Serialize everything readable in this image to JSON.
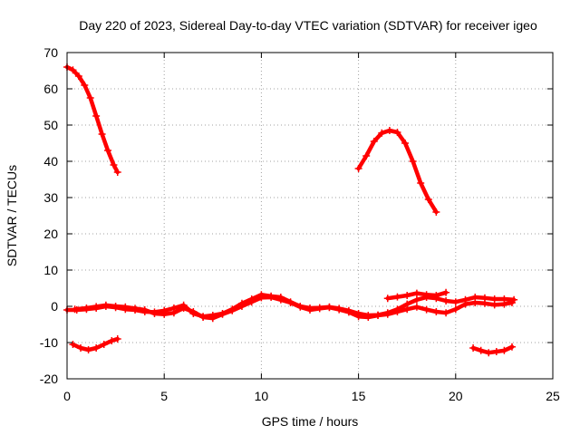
{
  "chart_data": {
    "type": "scatter",
    "title": "Day 220 of 2023, Sidereal Day-to-day VTEC variation (SDTVAR) for receiver igeo",
    "xlabel": "GPS time / hours",
    "ylabel": "SDTVAR / TECUs",
    "xlim": [
      0,
      25
    ],
    "ylim": [
      -20,
      70
    ],
    "xticks": [
      0,
      5,
      10,
      15,
      20,
      25
    ],
    "yticks": [
      -20,
      -10,
      0,
      10,
      20,
      30,
      40,
      50,
      60,
      70
    ],
    "grid": true,
    "color": "#ff0000",
    "marker": "plus",
    "series": [
      {
        "name": "arc-high-early",
        "x": [
          0.0,
          0.3,
          0.6,
          0.9,
          1.2,
          1.5,
          1.8,
          2.1,
          2.4,
          2.6
        ],
        "y": [
          66.0,
          65.2,
          63.5,
          61.0,
          57.5,
          52.5,
          47.5,
          43.0,
          39.0,
          37.0
        ]
      },
      {
        "name": "arc-high-late",
        "x": [
          15.0,
          15.4,
          15.8,
          16.2,
          16.6,
          17.0,
          17.4,
          17.8,
          18.2,
          18.6,
          19.0
        ],
        "y": [
          38.0,
          41.5,
          45.5,
          47.8,
          48.5,
          48.0,
          45.0,
          40.0,
          34.0,
          29.5,
          26.0
        ]
      },
      {
        "name": "baseline-a",
        "x": [
          0,
          0.5,
          1.0,
          1.5,
          2.0,
          2.5,
          3.0,
          3.5,
          4.0,
          4.5,
          5.0,
          5.5,
          6.0,
          6.5,
          7.0,
          7.5,
          8.0,
          8.5,
          9.0,
          9.5,
          10.0,
          10.5,
          11.0,
          11.5,
          12.0,
          12.5,
          13.0,
          13.5,
          14.0,
          14.5,
          15.0,
          15.5,
          16.0,
          16.5,
          17.0,
          17.5,
          18.0,
          18.5,
          19.0,
          19.5,
          20.0,
          20.5,
          21.0,
          21.5,
          22.0,
          22.5,
          23.0
        ],
        "y": [
          -1.0,
          -1.0,
          -0.8,
          -0.5,
          0.0,
          -0.3,
          -0.8,
          -1.0,
          -1.5,
          -1.6,
          -1.2,
          -0.5,
          0.3,
          -2.0,
          -2.8,
          -2.5,
          -2.0,
          -0.8,
          0.8,
          2.0,
          3.2,
          2.8,
          2.5,
          1.2,
          0.0,
          -0.5,
          -0.4,
          -0.2,
          -0.6,
          -1.2,
          -2.0,
          -2.5,
          -2.4,
          -1.8,
          -0.8,
          0.6,
          1.8,
          2.5,
          2.2,
          1.5,
          1.2,
          1.8,
          2.5,
          2.3,
          2.0,
          2.0,
          1.8
        ]
      },
      {
        "name": "baseline-b",
        "x": [
          0.4,
          1.0,
          1.5,
          2.0,
          2.5,
          3.0,
          3.5,
          4.0,
          4.5,
          5.0,
          5.5,
          6.0,
          6.5,
          7.0,
          7.5,
          8.0,
          8.5,
          9.0,
          9.5,
          10.0,
          10.5,
          11.0,
          11.5,
          12.0,
          12.5,
          13.0,
          13.5,
          14.0,
          14.5,
          15.0,
          15.5,
          16.0,
          16.5,
          17.0,
          17.5,
          18.0,
          18.5,
          19.0,
          19.5,
          20.0,
          20.5,
          21.0,
          21.5,
          22.0,
          22.5,
          22.9
        ],
        "y": [
          -0.8,
          -0.5,
          -0.1,
          0.3,
          0.0,
          -0.2,
          -0.6,
          -1.0,
          -2.0,
          -2.2,
          -1.8,
          -0.5,
          -1.5,
          -3.0,
          -3.3,
          -2.2,
          -1.2,
          0.0,
          1.2,
          2.4,
          2.5,
          1.8,
          1.0,
          -0.2,
          -1.0,
          -0.6,
          -0.3,
          -0.9,
          -1.6,
          -2.8,
          -3.0,
          -2.5,
          -2.2,
          -1.5,
          -0.8,
          -0.2,
          -0.9,
          -1.5,
          -1.8,
          -0.8,
          0.6,
          1.0,
          0.8,
          0.4,
          0.6,
          1.0
        ]
      },
      {
        "name": "baseline-c",
        "x": [
          16.5,
          17.0,
          17.5,
          18.0,
          18.5,
          19.0,
          19.5
        ],
        "y": [
          2.2,
          2.6,
          3.0,
          3.6,
          3.2,
          3.0,
          3.8
        ]
      },
      {
        "name": "negative-early",
        "x": [
          0.3,
          0.7,
          1.1,
          1.5,
          1.9,
          2.3,
          2.6
        ],
        "y": [
          -10.5,
          -11.5,
          -12.0,
          -11.5,
          -10.5,
          -9.5,
          -9.0
        ]
      },
      {
        "name": "negative-late",
        "x": [
          20.9,
          21.3,
          21.7,
          22.1,
          22.5,
          22.9
        ],
        "y": [
          -11.5,
          -12.2,
          -12.8,
          -12.5,
          -12.2,
          -11.2
        ]
      }
    ]
  }
}
